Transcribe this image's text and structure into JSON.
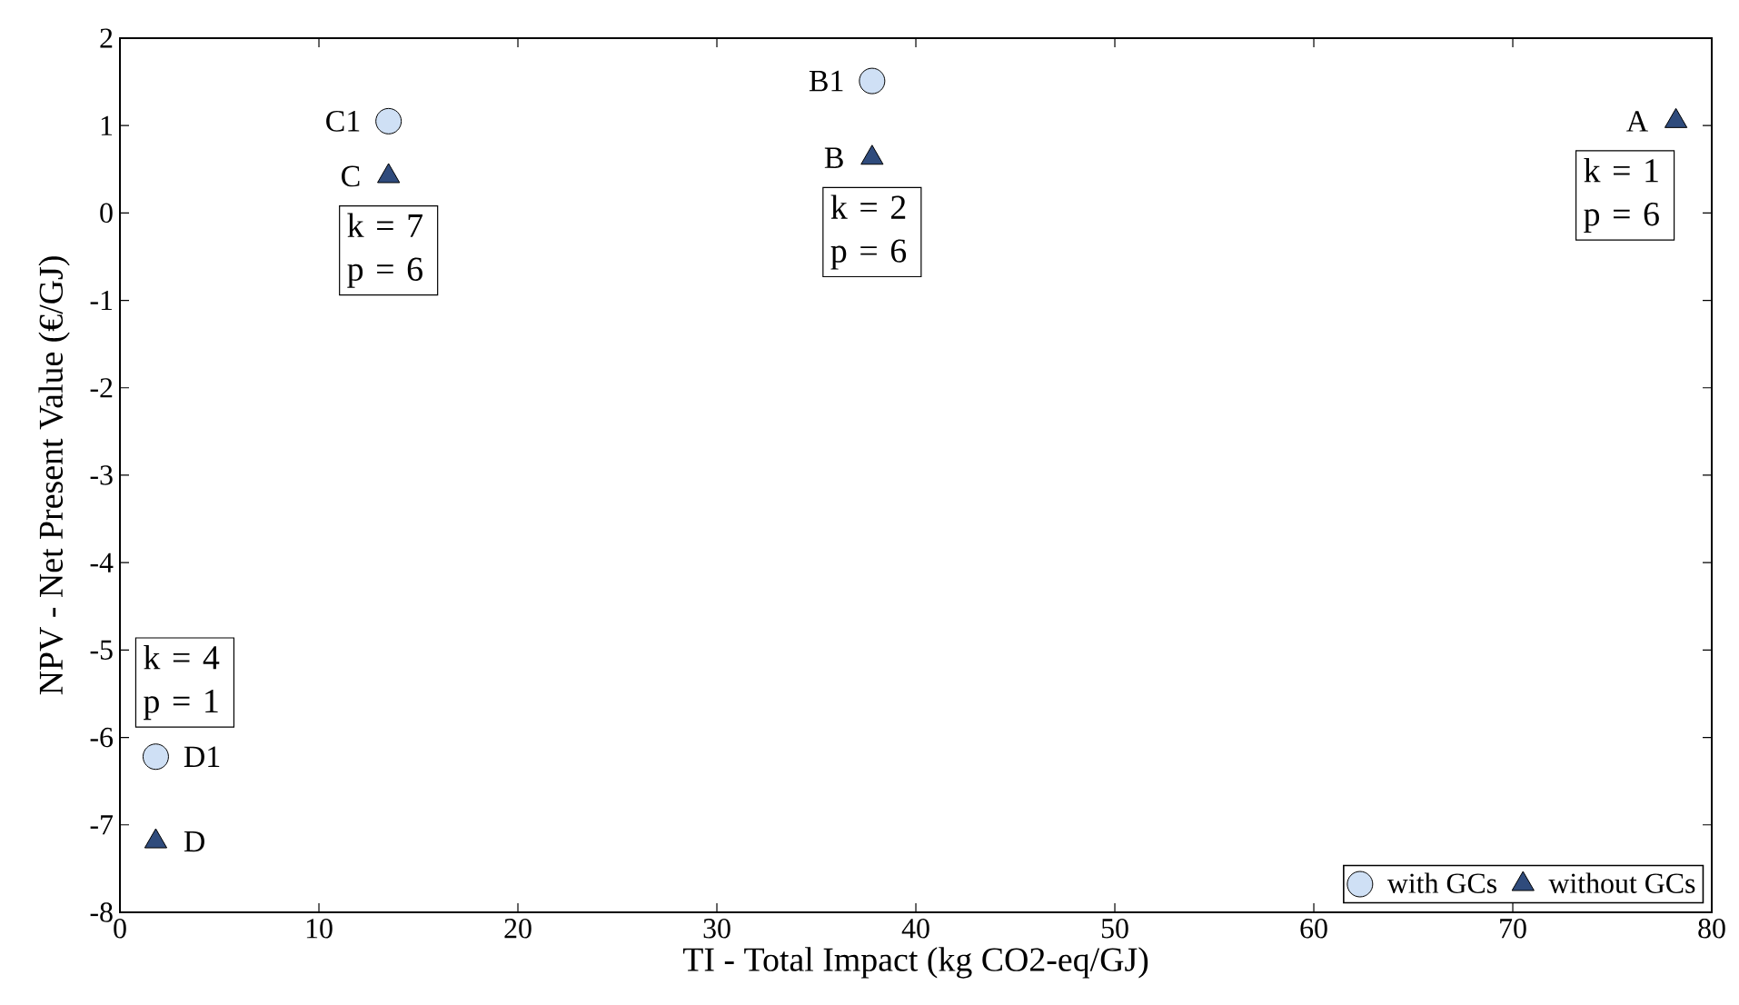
{
  "chart_data": {
    "type": "scatter",
    "xlabel": "TI - Total Impact (kg  CO2-eq/GJ)",
    "ylabel": "NPV  -  Net  Present  Value (€/GJ)",
    "xlim": [
      0,
      80
    ],
    "ylim": [
      -8,
      2
    ],
    "xticks": [
      0,
      10,
      20,
      30,
      40,
      50,
      60,
      70,
      80
    ],
    "yticks": [
      -8,
      -7,
      -6,
      -5,
      -4,
      -3,
      -2,
      -1,
      0,
      1,
      2
    ],
    "grid": false,
    "legend": "bottom right",
    "series": [
      {
        "name": "with GCs",
        "color": "#cfe0f5",
        "marker": "circle",
        "x": [
          13.5,
          37.8,
          1.8
        ],
        "values": [
          1.05,
          1.51,
          -6.22
        ]
      },
      {
        "name": "without GCs",
        "color": "#2f4b7c",
        "marker": "triangle",
        "x": [
          78.2,
          37.8,
          13.5,
          1.8
        ],
        "values": [
          1.05,
          0.63,
          0.42,
          -7.19
        ]
      }
    ],
    "annotations": [
      {
        "text": "C1",
        "x": 13.5,
        "y": 1.05
      },
      {
        "text": "C",
        "x": 13.5,
        "y": 0.42
      },
      {
        "text": "B1",
        "x": 37.8,
        "y": 1.51
      },
      {
        "text": "B",
        "x": 37.8,
        "y": 0.63
      },
      {
        "text": "A",
        "x": 78.2,
        "y": 1.05
      },
      {
        "text": "D1",
        "x": 1.8,
        "y": -6.22
      },
      {
        "text": "D",
        "x": 1.8,
        "y": -7.19
      },
      {
        "text": "k  =  7 p  =  6",
        "x": 13.5,
        "y": 0.42
      },
      {
        "text": "k  =  2 p  =  6",
        "x": 37.8,
        "y": 0.63
      },
      {
        "text": "k  =  1 p  =  6",
        "x": 78.2,
        "y": 1.05
      },
      {
        "text": "k  =  4 p  =  1",
        "x": 1.8,
        "y": -6.22
      }
    ]
  }
}
